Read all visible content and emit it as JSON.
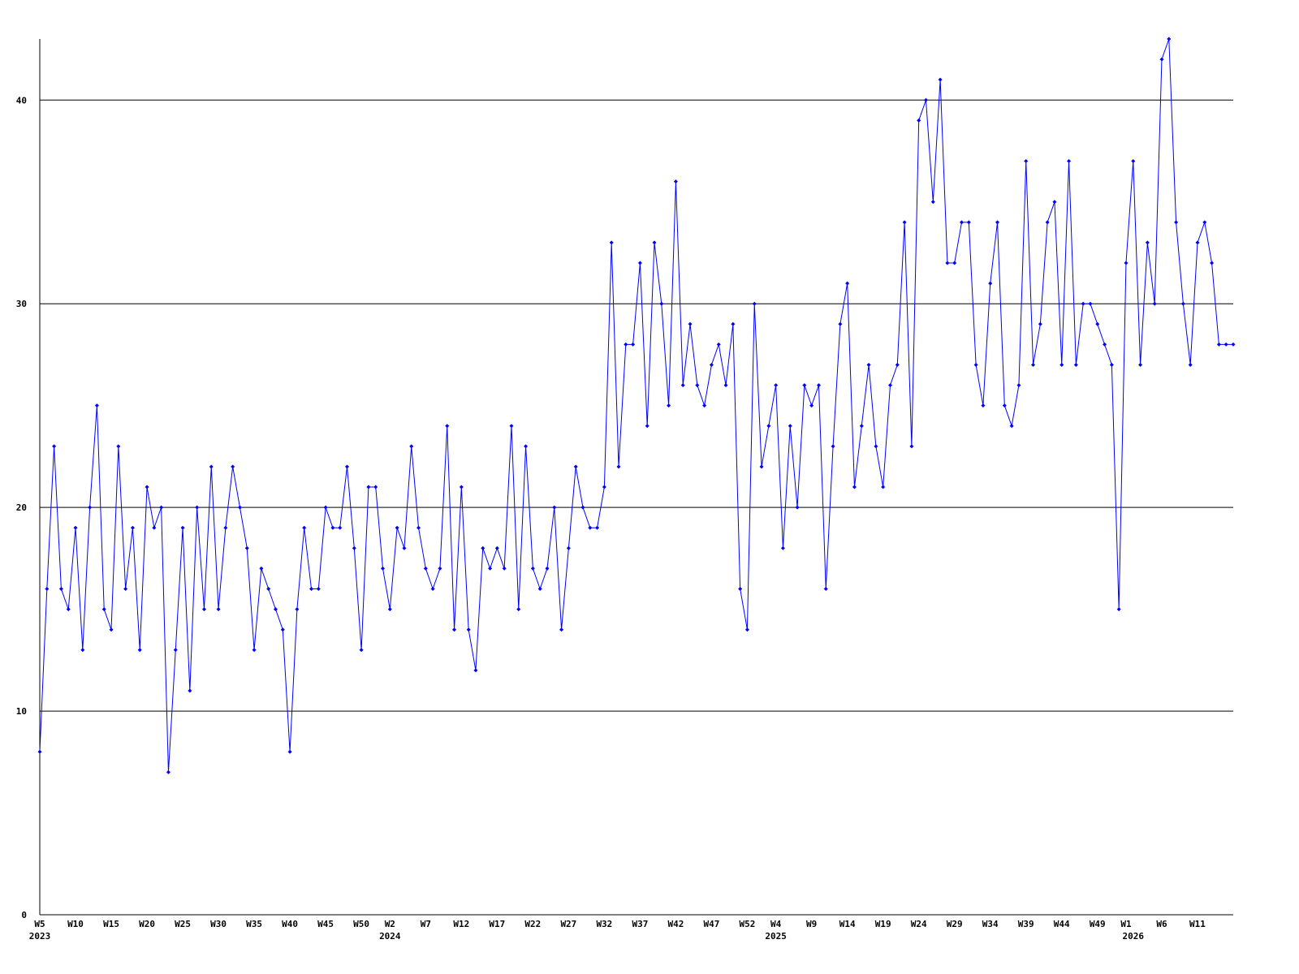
{
  "chart_data": {
    "type": "line",
    "categories": [
      "W5",
      null,
      null,
      null,
      null,
      "W10",
      null,
      null,
      null,
      null,
      "W15",
      null,
      null,
      null,
      null,
      "W20",
      null,
      null,
      null,
      null,
      "W25",
      null,
      null,
      null,
      null,
      "W30",
      null,
      null,
      null,
      null,
      "W35",
      null,
      null,
      null,
      null,
      "W40",
      null,
      null,
      null,
      null,
      "W45",
      null,
      null,
      null,
      null,
      "W50",
      null,
      null,
      null,
      "W2",
      null,
      null,
      null,
      null,
      "W7",
      null,
      null,
      null,
      null,
      "W12",
      null,
      null,
      null,
      null,
      "W17",
      null,
      null,
      null,
      null,
      "W22",
      null,
      null,
      null,
      null,
      "W27",
      null,
      null,
      null,
      null,
      "W32",
      null,
      null,
      null,
      null,
      "W37",
      null,
      null,
      null,
      null,
      "W42",
      null,
      null,
      null,
      null,
      "W47",
      null,
      null,
      null,
      null,
      "W52",
      null,
      null,
      null,
      "W4",
      null,
      null,
      null,
      null,
      "W9",
      null,
      null,
      null,
      null,
      "W14",
      null,
      null,
      null,
      null,
      "W19",
      null,
      null,
      null,
      null,
      "W24",
      null,
      null,
      null,
      null,
      "W29",
      null,
      null,
      null,
      null,
      "W34",
      null,
      null,
      null,
      null,
      "W39",
      null,
      null,
      null,
      null,
      "W44",
      null,
      null,
      null,
      null,
      "W49",
      null,
      null,
      null,
      "W1",
      null,
      null,
      null,
      null,
      "W6",
      null,
      null,
      null,
      null,
      "W11",
      null,
      null,
      null,
      null,
      null
    ],
    "category_years": [
      "2023",
      null,
      null,
      null,
      null,
      null,
      null,
      null,
      null,
      null,
      null,
      null,
      null,
      null,
      null,
      null,
      null,
      null,
      null,
      null,
      null,
      null,
      null,
      null,
      null,
      null,
      null,
      null,
      null,
      null,
      null,
      null,
      null,
      null,
      null,
      null,
      null,
      null,
      null,
      null,
      null,
      null,
      null,
      null,
      null,
      null,
      null,
      null,
      null,
      "2024",
      null,
      null,
      null,
      null,
      null,
      null,
      null,
      null,
      null,
      null,
      null,
      null,
      null,
      null,
      null,
      null,
      null,
      null,
      null,
      null,
      null,
      null,
      null,
      null,
      null,
      null,
      null,
      null,
      null,
      null,
      null,
      null,
      null,
      null,
      null,
      null,
      null,
      null,
      null,
      null,
      null,
      null,
      null,
      null,
      null,
      null,
      null,
      null,
      null,
      null,
      null,
      null,
      null,
      "2025",
      null,
      null,
      null,
      null,
      null,
      null,
      null,
      null,
      null,
      null,
      null,
      null,
      null,
      null,
      null,
      null,
      null,
      null,
      null,
      null,
      null,
      null,
      null,
      null,
      null,
      null,
      null,
      null,
      null,
      null,
      null,
      null,
      null,
      null,
      null,
      null,
      null,
      null,
      null,
      null,
      null,
      null,
      null,
      null,
      null,
      null,
      null,
      null,
      null,
      "2026",
      null,
      null,
      null,
      null,
      null,
      null,
      null,
      null,
      null,
      null,
      null,
      null,
      null,
      null,
      null
    ],
    "values": [
      8,
      16,
      23,
      16,
      15,
      19,
      13,
      20,
      25,
      15,
      14,
      23,
      16,
      19,
      13,
      21,
      19,
      20,
      7,
      13,
      19,
      11,
      20,
      15,
      22,
      15,
      19,
      22,
      20,
      18,
      13,
      17,
      16,
      15,
      14,
      8,
      15,
      19,
      16,
      16,
      20,
      19,
      19,
      22,
      18,
      13,
      21,
      21,
      17,
      15,
      19,
      18,
      23,
      19,
      17,
      16,
      17,
      24,
      14,
      21,
      14,
      12,
      18,
      17,
      18,
      17,
      24,
      15,
      23,
      17,
      16,
      17,
      20,
      14,
      18,
      22,
      20,
      19,
      19,
      21,
      33,
      22,
      28,
      28,
      32,
      24,
      33,
      30,
      25,
      36,
      26,
      29,
      26,
      25,
      27,
      28,
      26,
      29,
      16,
      14,
      30,
      22,
      24,
      26,
      18,
      24,
      20,
      26,
      25,
      26,
      16,
      23,
      29,
      31,
      21,
      24,
      27,
      23,
      21,
      26,
      27,
      34,
      23,
      39,
      40,
      35,
      41,
      32,
      32,
      34,
      34,
      27,
      25,
      31,
      34,
      25,
      24,
      26,
      37,
      27,
      29,
      34,
      35,
      27,
      37,
      27,
      30,
      30,
      29,
      28,
      27,
      15,
      32,
      37,
      27,
      33,
      30,
      42,
      43,
      34,
      30,
      27,
      33,
      34,
      32,
      28,
      28,
      28
    ],
    "color": "#0000ff",
    "ylim": [
      0,
      43
    ],
    "yticks": [
      0,
      10,
      20,
      30,
      40
    ],
    "grid": true
  }
}
